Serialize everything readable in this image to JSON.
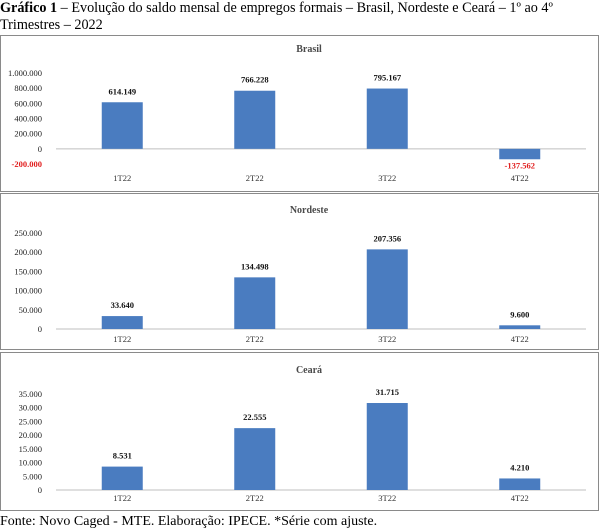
{
  "figure": {
    "title_bold": "Gráfico 1",
    "title_rest": " – Evolução do saldo mensal de empregos formais – Brasil, Nordeste e Ceará – 1º ao 4º Trimestres – 2022",
    "source": "Fonte: Novo Caged - MTE. Elaboração: IPECE. *Série com ajuste."
  },
  "colors": {
    "bar": "#4a7cc0",
    "negative_label": "#e11d1d",
    "axis": "#bfbfbf"
  },
  "chart_data": [
    {
      "type": "bar",
      "title": "Brasil",
      "categories": [
        "1T22",
        "2T22",
        "3T22",
        "4T22"
      ],
      "values": [
        614149,
        766228,
        795167,
        -137562
      ],
      "value_labels": [
        "614.149",
        "766.228",
        "795.167",
        "-137.562"
      ],
      "ylim": [
        -200000,
        1000000
      ],
      "yticks": [
        -200000,
        0,
        200000,
        400000,
        600000,
        800000,
        1000000
      ],
      "ytick_labels": [
        "-200.000",
        "0",
        "200.000",
        "400.000",
        "600.000",
        "800.000",
        "1.000.000"
      ],
      "negative_tick": "-200.000",
      "xlabel": "",
      "ylabel": ""
    },
    {
      "type": "bar",
      "title": "Nordeste",
      "categories": [
        "1T22",
        "2T22",
        "3T22",
        "4T22"
      ],
      "values": [
        33640,
        134498,
        207356,
        9600
      ],
      "value_labels": [
        "33.640",
        "134.498",
        "207.356",
        "9.600"
      ],
      "ylim": [
        0,
        250000
      ],
      "yticks": [
        0,
        50000,
        100000,
        150000,
        200000,
        250000
      ],
      "ytick_labels": [
        "0",
        "50.000",
        "100.000",
        "150.000",
        "200.000",
        "250.000"
      ],
      "xlabel": "",
      "ylabel": ""
    },
    {
      "type": "bar",
      "title": "Ceará",
      "categories": [
        "1T22",
        "2T22",
        "3T22",
        "4T22"
      ],
      "values": [
        8531,
        22555,
        31715,
        4210
      ],
      "value_labels": [
        "8.531",
        "22.555",
        "31.715",
        "4.210"
      ],
      "ylim": [
        0,
        35000
      ],
      "yticks": [
        0,
        5000,
        10000,
        15000,
        20000,
        25000,
        30000,
        35000
      ],
      "ytick_labels": [
        "0",
        "5.000",
        "10.000",
        "15.000",
        "20.000",
        "25.000",
        "30.000",
        "35.000"
      ],
      "xlabel": "",
      "ylabel": ""
    }
  ]
}
